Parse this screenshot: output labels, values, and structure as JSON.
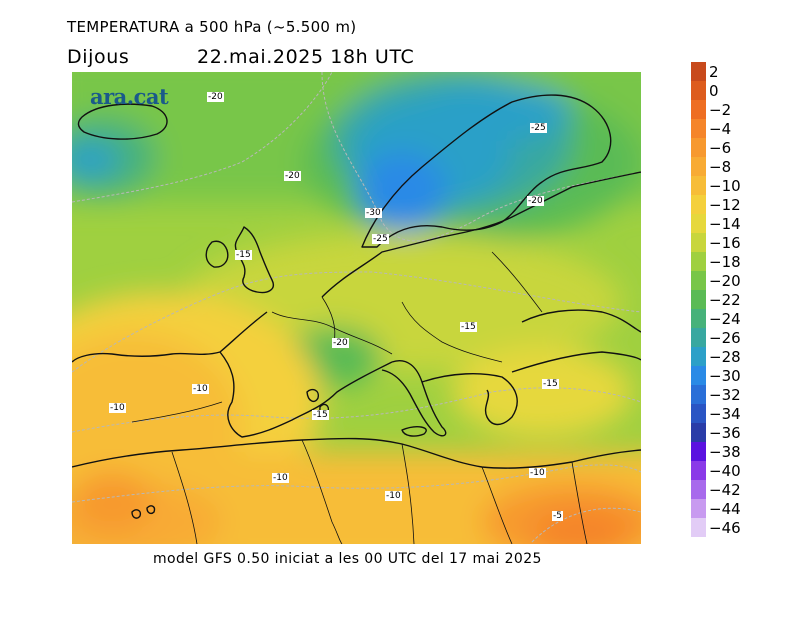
{
  "title": {
    "line1": "TEMPERATURA a 500 hPa (~5.500 m)",
    "day": "Dijous",
    "datetime": "22.mai.2025 18h UTC"
  },
  "footer": "model GFS 0.50 iniciat a les 00 UTC del 17 mai 2025",
  "logo": "ara.cat",
  "map_labels": [
    "-20",
    "-25",
    "-20",
    "-20",
    "-15",
    "-30",
    "-25",
    "-20",
    "-15",
    "-15",
    "-10",
    "-10",
    "-15",
    "-10",
    "-10",
    "-10",
    "-5"
  ],
  "legend": {
    "labels": [
      "2",
      "0",
      "−2",
      "−4",
      "−6",
      "−8",
      "−10",
      "−12",
      "−14",
      "−16",
      "−18",
      "−20",
      "−22",
      "−24",
      "−26",
      "−28",
      "−30",
      "−32",
      "−34",
      "−36",
      "−38",
      "−40",
      "−42",
      "−44",
      "−46"
    ],
    "colors": [
      "#c84a1c",
      "#dd5c1e",
      "#ee6e22",
      "#f5852a",
      "#f7992f",
      "#f8ab34",
      "#f7bd38",
      "#f4d03c",
      "#e6d83c",
      "#c8d63c",
      "#9fd040",
      "#78c648",
      "#5abb55",
      "#46b27a",
      "#38a8a0",
      "#2ca0c8",
      "#2a8ae6",
      "#2a6fd8",
      "#2a55c4",
      "#2a3ca8",
      "#5a12e0",
      "#8a3ae8",
      "#a86aec",
      "#c89af0",
      "#e2ccf6"
    ]
  }
}
